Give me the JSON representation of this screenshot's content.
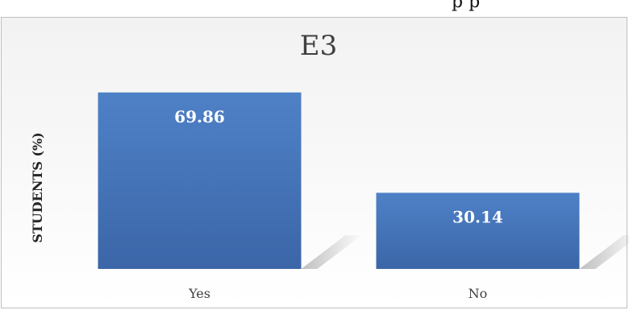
{
  "top_fragment": "p              p",
  "chart_data": {
    "type": "bar",
    "title": "E3",
    "xlabel": "",
    "ylabel": "STUDENTS (%)",
    "categories": [
      "Yes",
      "No"
    ],
    "values": [
      69.86,
      30.14
    ],
    "ylim": [
      0,
      80
    ],
    "grid": false,
    "legend": "none",
    "bar_color": "#4472c4"
  }
}
